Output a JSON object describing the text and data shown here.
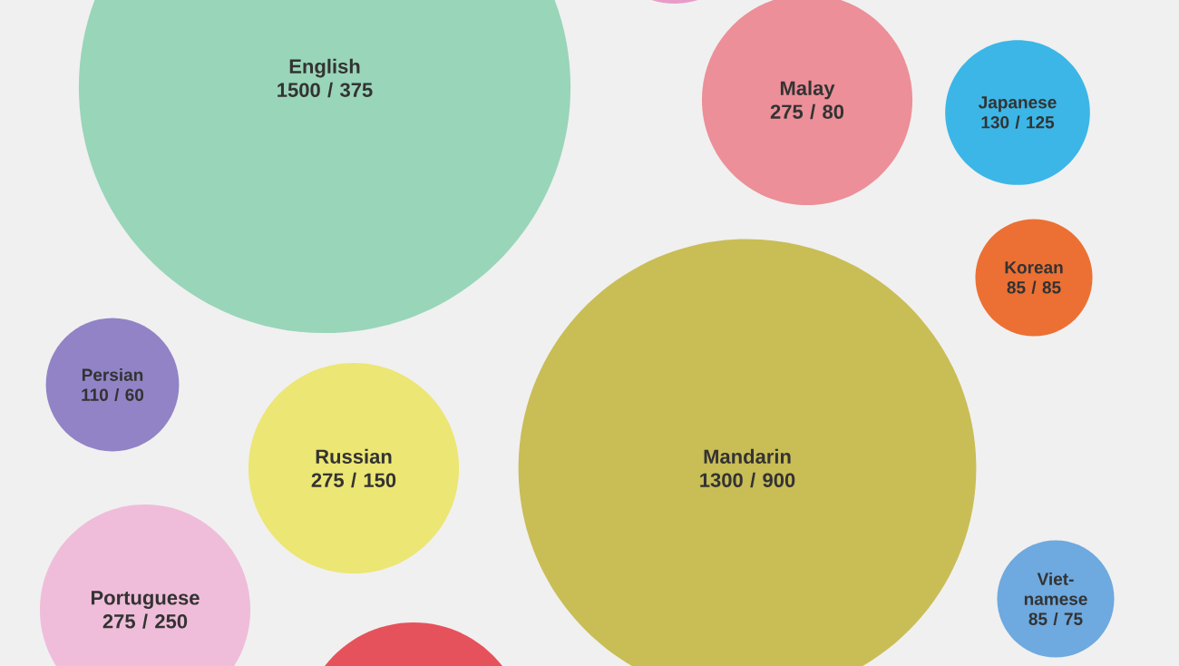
{
  "chart_data": {
    "type": "other",
    "categories": [
      "English",
      null,
      "Malay",
      "Japanese",
      "Korean",
      "Persian",
      "Russian",
      "Mandarin",
      "Portuguese",
      null,
      "Viet-namese"
    ],
    "values": [
      1500,
      null,
      275,
      130,
      85,
      110,
      275,
      1300,
      275,
      null,
      85
    ],
    "value_labels": [
      "1500 / 375",
      null,
      "275 / 80",
      "130 / 125",
      "85 / 85",
      "110 / 60",
      "275 / 150",
      "1300 / 900",
      "275 / 250",
      null,
      "85 / 75"
    ],
    "colors": [
      "#99d5b9",
      "#e79cc8",
      "#ec8f98",
      "#3cb6e7",
      "#ec7033",
      "#9283c6",
      "#ece674",
      "#c9bd56",
      "#efbdd9",
      "#e6525c",
      "#6ea9df"
    ]
  }
}
